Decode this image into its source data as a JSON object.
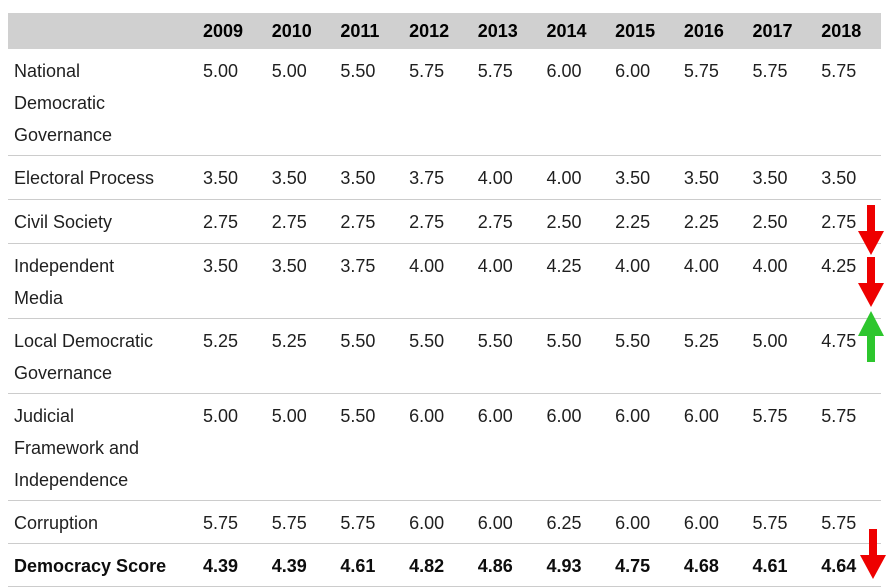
{
  "colors": {
    "header_bg": "#d0d0d0",
    "divider": "#cccccc",
    "text": "#1f1f1f",
    "trend_down": "#ee0000",
    "trend_up": "#2dc62d"
  },
  "table": {
    "corner_label": "",
    "years": [
      "2009",
      "2010",
      "2011",
      "2012",
      "2013",
      "2014",
      "2015",
      "2016",
      "2017",
      "2018"
    ],
    "rows": [
      {
        "label": "National\nDemocratic\nGovernance",
        "values": [
          "5.00",
          "5.00",
          "5.50",
          "5.75",
          "5.75",
          "6.00",
          "6.00",
          "5.75",
          "5.75",
          "5.75"
        ]
      },
      {
        "label": "Electoral Process",
        "values": [
          "3.50",
          "3.50",
          "3.50",
          "3.75",
          "4.00",
          "4.00",
          "3.50",
          "3.50",
          "3.50",
          "3.50"
        ]
      },
      {
        "label": "Civil Society",
        "values": [
          "2.75",
          "2.75",
          "2.75",
          "2.75",
          "2.75",
          "2.50",
          "2.25",
          "2.25",
          "2.50",
          "2.75"
        ],
        "trend": "down"
      },
      {
        "label": "Independent\nMedia",
        "values": [
          "3.50",
          "3.50",
          "3.75",
          "4.00",
          "4.00",
          "4.25",
          "4.00",
          "4.00",
          "4.00",
          "4.25"
        ],
        "trend": "down"
      },
      {
        "label": "Local Democratic\nGovernance",
        "values": [
          "5.25",
          "5.25",
          "5.50",
          "5.50",
          "5.50",
          "5.50",
          "5.50",
          "5.25",
          "5.00",
          "4.75"
        ],
        "trend": "up"
      },
      {
        "label": "Judicial\nFramework and\nIndependence",
        "values": [
          "5.00",
          "5.00",
          "5.50",
          "6.00",
          "6.00",
          "6.00",
          "6.00",
          "6.00",
          "5.75",
          "5.75"
        ]
      },
      {
        "label": "Corruption",
        "values": [
          "5.75",
          "5.75",
          "5.75",
          "6.00",
          "6.00",
          "6.25",
          "6.00",
          "6.00",
          "5.75",
          "5.75"
        ]
      },
      {
        "label": "Democracy Score",
        "values": [
          "4.39",
          "4.39",
          "4.61",
          "4.82",
          "4.86",
          "4.93",
          "4.75",
          "4.68",
          "4.61",
          "4.64"
        ],
        "trend": "down",
        "emphasis": true
      }
    ]
  },
  "chart_data": {
    "type": "table",
    "title": "",
    "columns": [
      "2009",
      "2010",
      "2011",
      "2012",
      "2013",
      "2014",
      "2015",
      "2016",
      "2017",
      "2018"
    ],
    "series": [
      {
        "name": "National Democratic Governance",
        "values": [
          5.0,
          5.0,
          5.5,
          5.75,
          5.75,
          6.0,
          6.0,
          5.75,
          5.75,
          5.75
        ]
      },
      {
        "name": "Electoral Process",
        "values": [
          3.5,
          3.5,
          3.5,
          3.75,
          4.0,
          4.0,
          3.5,
          3.5,
          3.5,
          3.5
        ]
      },
      {
        "name": "Civil Society",
        "values": [
          2.75,
          2.75,
          2.75,
          2.75,
          2.75,
          2.5,
          2.25,
          2.25,
          2.5,
          2.75
        ]
      },
      {
        "name": "Independent Media",
        "values": [
          3.5,
          3.5,
          3.75,
          4.0,
          4.0,
          4.25,
          4.0,
          4.0,
          4.0,
          4.25
        ]
      },
      {
        "name": "Local Democratic Governance",
        "values": [
          5.25,
          5.25,
          5.5,
          5.5,
          5.5,
          5.5,
          5.5,
          5.25,
          5.0,
          4.75
        ]
      },
      {
        "name": "Judicial Framework and Independence",
        "values": [
          5.0,
          5.0,
          5.5,
          6.0,
          6.0,
          6.0,
          6.0,
          6.0,
          5.75,
          5.75
        ]
      },
      {
        "name": "Corruption",
        "values": [
          5.75,
          5.75,
          5.75,
          6.0,
          6.0,
          6.25,
          6.0,
          6.0,
          5.75,
          5.75
        ]
      },
      {
        "name": "Democracy Score",
        "values": [
          4.39,
          4.39,
          4.61,
          4.82,
          4.86,
          4.93,
          4.75,
          4.68,
          4.61,
          4.64
        ]
      }
    ],
    "annotations": [
      {
        "row": "Civil Society",
        "arrow": "down",
        "color": "#ee0000"
      },
      {
        "row": "Independent Media",
        "arrow": "down",
        "color": "#ee0000"
      },
      {
        "row": "Local Democratic Governance",
        "arrow": "up",
        "color": "#2dc62d"
      },
      {
        "row": "Democracy Score",
        "arrow": "down",
        "color": "#ee0000"
      }
    ]
  }
}
